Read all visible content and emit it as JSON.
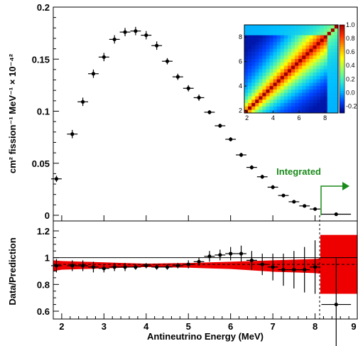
{
  "chart_data": [
    {
      "type": "scatter",
      "panel": "top",
      "ylabel": "cm² fission⁻¹ MeV⁻¹ × 10⁻⁴²",
      "xlim": [
        1.8,
        9.0
      ],
      "ylim": [
        -0.005,
        0.2
      ],
      "y_ticks": [
        "0",
        "0.05",
        "0.1",
        "0.15",
        "0.2"
      ],
      "grid": false,
      "annotation": "Integrated",
      "series": [
        {
          "x": [
            1.875,
            2.25,
            2.5,
            2.75,
            3.0,
            3.25,
            3.5,
            3.75,
            4.0,
            4.25,
            4.5,
            4.75,
            5.0,
            5.25,
            5.5,
            5.75,
            6.0,
            6.25,
            6.5,
            6.75,
            7.0,
            7.25,
            7.5,
            7.75,
            8.0,
            8.5
          ],
          "y": [
            0.035,
            0.078,
            0.109,
            0.136,
            0.152,
            0.169,
            0.176,
            0.177,
            0.173,
            0.163,
            0.148,
            0.133,
            0.122,
            0.113,
            0.099,
            0.086,
            0.073,
            0.058,
            0.046,
            0.037,
            0.027,
            0.019,
            0.013,
            0.009,
            0.006,
            0.001
          ],
          "y_err": [
            0.003,
            0.004,
            0.004,
            0.004,
            0.004,
            0.004,
            0.004,
            0.004,
            0.004,
            0.004,
            0.003,
            0.003,
            0.003,
            0.003,
            0.002,
            0.002,
            0.002,
            0.002,
            0.002,
            0.002,
            0.002,
            0.001,
            0.001,
            0.001,
            0.001,
            0.001
          ],
          "x_halfwidth": [
            0.125,
            0.125,
            0.125,
            0.125,
            0.125,
            0.125,
            0.125,
            0.125,
            0.125,
            0.125,
            0.125,
            0.125,
            0.125,
            0.125,
            0.125,
            0.125,
            0.125,
            0.125,
            0.125,
            0.125,
            0.125,
            0.125,
            0.125,
            0.125,
            0.125,
            0.35
          ]
        }
      ]
    },
    {
      "type": "scatter",
      "panel": "bottom",
      "xlabel": "Antineutrino Energy (MeV)",
      "ylabel": "Data/Prediction",
      "xlim": [
        1.8,
        9.0
      ],
      "ylim": [
        0.6,
        1.27
      ],
      "x_ticks": [
        "2",
        "3",
        "4",
        "5",
        "6",
        "7",
        "8",
        "9"
      ],
      "y_ticks": [
        "0.6",
        "0.8",
        "1",
        "1.2"
      ],
      "reference_lines": [
        1.0,
        0.95
      ],
      "band_color": "#ee0000",
      "band": {
        "x": [
          1.8,
          2.0,
          2.5,
          3.0,
          3.5,
          4.0,
          4.5,
          5.0,
          5.5,
          6.0,
          6.5,
          7.0,
          7.5,
          8.0,
          8.125
        ],
        "lo": [
          0.9,
          0.91,
          0.915,
          0.92,
          0.925,
          0.93,
          0.928,
          0.925,
          0.92,
          0.915,
          0.905,
          0.895,
          0.89,
          0.885,
          0.88
        ],
        "hi": [
          0.98,
          0.975,
          0.97,
          0.965,
          0.96,
          0.955,
          0.958,
          0.96,
          0.965,
          0.97,
          0.975,
          0.98,
          0.985,
          0.99,
          0.995
        ]
      },
      "integrated_band": {
        "x": [
          8.125,
          9.0
        ],
        "lo": 0.73,
        "hi": 1.17
      },
      "series": [
        {
          "x": [
            1.875,
            2.25,
            2.5,
            2.75,
            3.0,
            3.25,
            3.5,
            3.75,
            4.0,
            4.25,
            4.5,
            4.75,
            5.0,
            5.25,
            5.5,
            5.75,
            6.0,
            6.25,
            6.5,
            6.75,
            7.0,
            7.25,
            7.5,
            7.75,
            8.0,
            8.5
          ],
          "y": [
            0.94,
            0.94,
            0.94,
            0.93,
            0.92,
            0.93,
            0.93,
            0.93,
            0.94,
            0.93,
            0.93,
            0.94,
            0.95,
            0.97,
            1.01,
            1.02,
            1.03,
            1.03,
            0.98,
            0.95,
            0.93,
            0.91,
            0.91,
            0.91,
            0.93,
            0.65
          ],
          "y_err": [
            0.05,
            0.04,
            0.04,
            0.04,
            0.03,
            0.03,
            0.03,
            0.02,
            0.02,
            0.02,
            0.02,
            0.02,
            0.03,
            0.03,
            0.04,
            0.04,
            0.05,
            0.06,
            0.07,
            0.08,
            0.1,
            0.12,
            0.14,
            0.17,
            0.2,
            0.35
          ],
          "x_halfwidth": [
            0.125,
            0.125,
            0.125,
            0.125,
            0.125,
            0.125,
            0.125,
            0.125,
            0.125,
            0.125,
            0.125,
            0.125,
            0.125,
            0.125,
            0.125,
            0.125,
            0.125,
            0.125,
            0.125,
            0.125,
            0.125,
            0.125,
            0.125,
            0.125,
            0.125,
            0.35
          ]
        }
      ]
    },
    {
      "type": "heatmap",
      "panel": "inset",
      "x_ticks": [
        "2",
        "4",
        "6",
        "8"
      ],
      "y_ticks": [
        "2",
        "4",
        "6",
        "8"
      ],
      "colorbar_ticks": [
        "1.0",
        "0.8",
        "0.6",
        "0.4",
        "0.2",
        "0.0",
        "-0.2"
      ],
      "colorbar_range": [
        -0.3,
        1.0
      ],
      "colormap": [
        "#000080",
        "#0044ff",
        "#00c0ff",
        "#40f0c0",
        "#a0ff60",
        "#ffff00",
        "#ffa000",
        "#ff3000",
        "#a00000"
      ]
    }
  ]
}
